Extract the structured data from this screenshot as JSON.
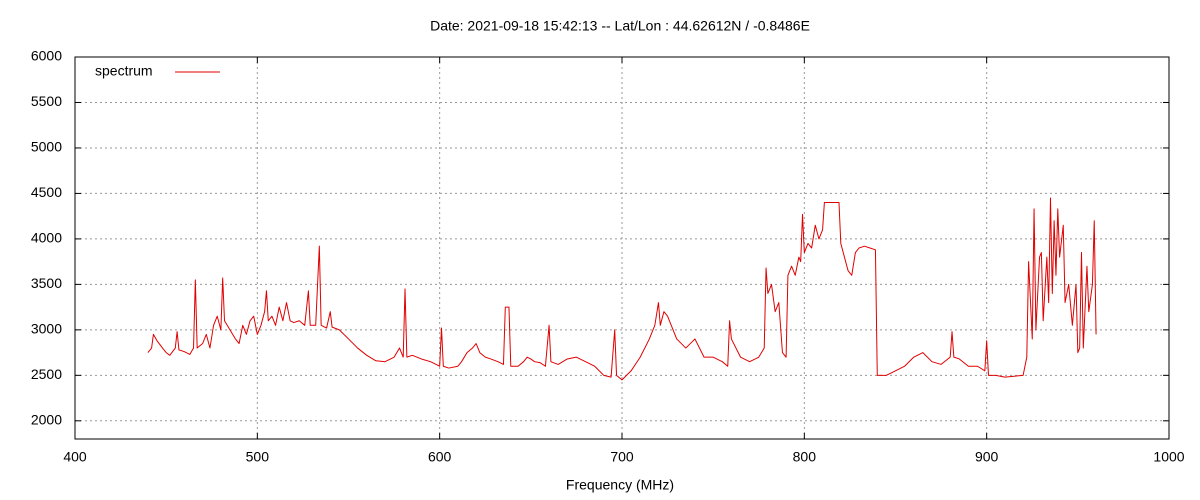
{
  "chart_data": {
    "type": "line",
    "title": "Date: 2021-09-18 15:42:13  --  Lat/Lon : 44.62612N / -0.8486E",
    "xlabel": "Frequency (MHz)",
    "xlim": [
      400,
      1000
    ],
    "xticks": [
      400,
      500,
      600,
      700,
      800,
      900,
      1000
    ],
    "ylim": [
      1800,
      6000
    ],
    "yticks": [
      2000,
      2500,
      3000,
      3500,
      4000,
      4500,
      5000,
      5500,
      6000
    ],
    "grid": true,
    "legend": "top-left",
    "x": [
      440,
      442,
      443,
      445,
      448,
      450,
      452,
      455,
      456,
      457,
      460,
      463,
      465,
      466,
      467,
      470,
      472,
      474,
      476,
      478,
      480,
      481,
      482,
      485,
      488,
      490,
      492,
      494,
      496,
      498,
      500,
      502,
      504,
      505,
      506,
      508,
      510,
      512,
      514,
      516,
      518,
      520,
      523,
      526,
      528,
      529,
      532,
      534,
      535,
      538,
      540,
      541,
      545,
      550,
      555,
      560,
      565,
      570,
      575,
      578,
      580,
      581,
      582,
      585,
      590,
      595,
      600,
      601,
      602,
      605,
      610,
      612,
      615,
      618,
      620,
      622,
      625,
      628,
      632,
      635,
      636,
      638,
      639,
      643,
      646,
      648,
      650,
      652,
      655,
      658,
      660,
      661,
      665,
      670,
      675,
      680,
      685,
      690,
      694,
      696,
      697,
      700,
      705,
      710,
      715,
      718,
      720,
      721,
      723,
      725,
      728,
      730,
      735,
      740,
      745,
      750,
      755,
      758,
      759,
      760,
      765,
      770,
      775,
      778,
      779,
      780,
      782,
      784,
      786,
      788,
      790,
      791,
      793,
      795,
      797,
      798,
      799,
      800,
      802,
      804,
      806,
      808,
      810,
      811,
      819,
      820,
      822,
      824,
      826,
      828,
      830,
      833,
      836,
      839,
      840,
      845,
      850,
      855,
      860,
      865,
      870,
      875,
      880,
      881,
      882,
      885,
      890,
      895,
      899,
      900,
      901,
      905,
      910,
      915,
      920,
      922,
      923,
      925,
      926,
      927,
      929,
      930,
      931,
      933,
      934,
      935,
      936,
      937,
      938,
      939,
      940,
      942,
      943,
      945,
      947,
      949,
      950,
      951,
      952,
      953,
      955,
      956,
      958,
      959,
      960
    ],
    "series": [
      {
        "name": "spectrum",
        "color": "#e00000",
        "values": [
          2750,
          2800,
          2950,
          2880,
          2800,
          2750,
          2720,
          2800,
          2980,
          2780,
          2760,
          2730,
          2800,
          3550,
          2800,
          2850,
          2950,
          2800,
          3050,
          3150,
          3000,
          3570,
          3100,
          3000,
          2900,
          2850,
          3050,
          2950,
          3100,
          3150,
          2950,
          3050,
          3200,
          3430,
          3100,
          3150,
          3050,
          3250,
          3100,
          3300,
          3100,
          3080,
          3100,
          3050,
          3430,
          3050,
          3050,
          3920,
          3050,
          3020,
          3200,
          3030,
          3000,
          2900,
          2800,
          2720,
          2660,
          2650,
          2700,
          2800,
          2700,
          3450,
          2700,
          2720,
          2680,
          2650,
          2600,
          3020,
          2600,
          2580,
          2600,
          2650,
          2750,
          2800,
          2850,
          2750,
          2700,
          2680,
          2650,
          2620,
          3250,
          3250,
          2600,
          2600,
          2650,
          2700,
          2680,
          2650,
          2640,
          2600,
          3050,
          2650,
          2620,
          2680,
          2700,
          2650,
          2600,
          2500,
          2480,
          3000,
          2500,
          2450,
          2550,
          2700,
          2900,
          3050,
          3300,
          3050,
          3200,
          3150,
          3000,
          2900,
          2800,
          2900,
          2700,
          2700,
          2650,
          2600,
          3100,
          2900,
          2700,
          2650,
          2700,
          2800,
          3680,
          3400,
          3500,
          3200,
          3300,
          2750,
          2700,
          3600,
          3700,
          3600,
          3800,
          3750,
          4270,
          3850,
          3950,
          3900,
          4150,
          4000,
          4100,
          4400,
          4400,
          3950,
          3800,
          3650,
          3600,
          3850,
          3900,
          3920,
          3900,
          3880,
          2500,
          2500,
          2550,
          2600,
          2700,
          2750,
          2650,
          2620,
          2700,
          2980,
          2700,
          2680,
          2600,
          2600,
          2550,
          2880,
          2500,
          2500,
          2480,
          2490,
          2500,
          2700,
          3750,
          2900,
          4330,
          3000,
          3800,
          3850,
          3100,
          3800,
          3300,
          4450,
          3400,
          4200,
          3600,
          4330,
          3800,
          4150,
          3300,
          3500,
          3050,
          3500,
          2750,
          2800,
          3850,
          2800,
          3700,
          3200,
          3500,
          4200,
          2950
        ]
      }
    ]
  }
}
